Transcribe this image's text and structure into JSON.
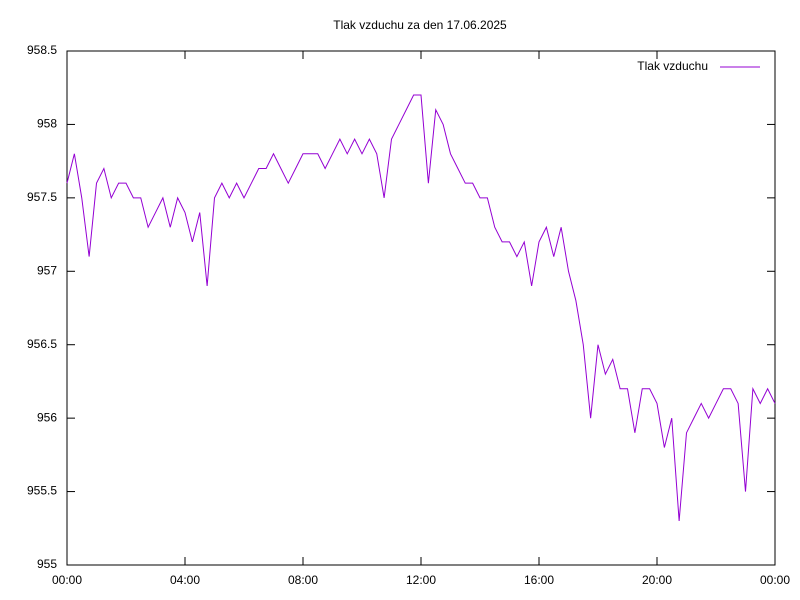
{
  "chart_data": {
    "type": "line",
    "title": "Tlak vzduchu za den 17.06.2025",
    "x": [
      0,
      0.25,
      0.5,
      0.75,
      1,
      1.25,
      1.5,
      1.75,
      2,
      2.25,
      2.5,
      2.75,
      3,
      3.25,
      3.5,
      3.75,
      4,
      4.25,
      4.5,
      4.75,
      5,
      5.25,
      5.5,
      5.75,
      6,
      6.25,
      6.5,
      6.75,
      7,
      7.25,
      7.5,
      7.75,
      8,
      8.25,
      8.5,
      8.75,
      9,
      9.25,
      9.5,
      9.75,
      10,
      10.25,
      10.5,
      10.75,
      11,
      11.25,
      11.5,
      11.75,
      12,
      12.25,
      12.5,
      12.75,
      13,
      13.25,
      13.5,
      13.75,
      14,
      14.25,
      14.5,
      14.75,
      15,
      15.25,
      15.5,
      15.75,
      16,
      16.25,
      16.5,
      16.75,
      17,
      17.25,
      17.5,
      17.75,
      18,
      18.25,
      18.5,
      18.75,
      19,
      19.25,
      19.5,
      19.75,
      20,
      20.25,
      20.5,
      20.75,
      21,
      21.25,
      21.5,
      21.75,
      22,
      22.25,
      22.5,
      22.75,
      23,
      23.25,
      23.5,
      23.75,
      24
    ],
    "series": [
      {
        "name": "Tlak vzduchu",
        "color": "#9400d3",
        "values": [
          957.6,
          957.8,
          957.5,
          957.1,
          957.6,
          957.7,
          957.5,
          957.6,
          957.6,
          957.5,
          957.5,
          957.3,
          957.4,
          957.5,
          957.3,
          957.5,
          957.4,
          957.2,
          957.4,
          956.9,
          957.5,
          957.6,
          957.5,
          957.6,
          957.5,
          957.6,
          957.7,
          957.7,
          957.8,
          957.7,
          957.6,
          957.7,
          957.8,
          957.8,
          957.8,
          957.7,
          957.8,
          957.9,
          957.8,
          957.9,
          957.8,
          957.9,
          957.8,
          957.5,
          957.9,
          958.0,
          958.1,
          958.2,
          958.2,
          957.6,
          958.1,
          958.0,
          957.8,
          957.7,
          957.6,
          957.6,
          957.5,
          957.5,
          957.3,
          957.2,
          957.2,
          957.1,
          957.2,
          956.9,
          957.2,
          957.3,
          957.1,
          957.3,
          957.0,
          956.8,
          956.5,
          956.0,
          956.5,
          956.3,
          956.4,
          956.2,
          956.2,
          955.9,
          956.2,
          956.2,
          956.1,
          955.8,
          956.0,
          955.3,
          955.9,
          956.0,
          956.1,
          956.0,
          956.1,
          956.2,
          956.2,
          956.1,
          955.5,
          956.2,
          956.1,
          956.2,
          956.1
        ]
      }
    ],
    "xlim": [
      0,
      24
    ],
    "xticks": [
      {
        "value": 0,
        "label": "00:00"
      },
      {
        "value": 4,
        "label": "04:00"
      },
      {
        "value": 8,
        "label": "08:00"
      },
      {
        "value": 12,
        "label": "12:00"
      },
      {
        "value": 16,
        "label": "16:00"
      },
      {
        "value": 20,
        "label": "20:00"
      },
      {
        "value": 24,
        "label": "00:00"
      }
    ],
    "ylim": [
      955,
      958.5
    ],
    "yticks": [
      955,
      955.5,
      956,
      956.5,
      957,
      957.5,
      958,
      958.5
    ],
    "grid": false,
    "legend": "top-right"
  }
}
